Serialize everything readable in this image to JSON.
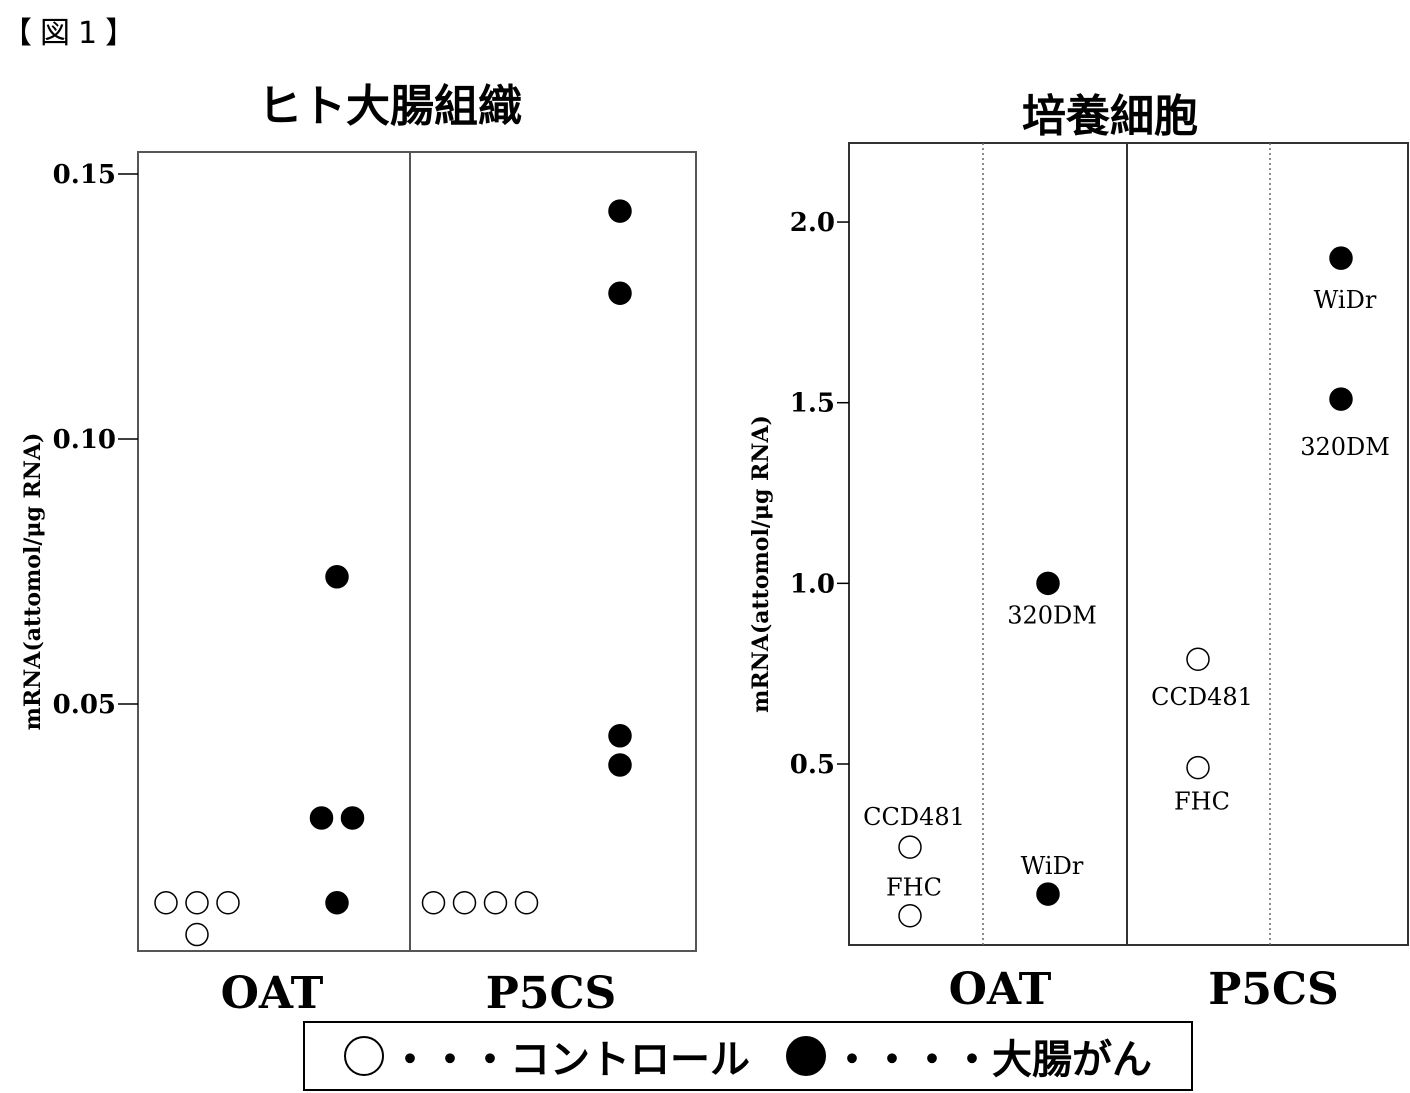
{
  "figure_label": "【図1】",
  "legend": {
    "control_label": "・・・コントロール",
    "cancer_label": "・・・・大腸がん"
  },
  "chart_data": [
    {
      "type": "scatter",
      "title": "ヒト大腸組織",
      "ylabel": "mRNA(attomol/μg RNA)",
      "ylim": [
        0,
        0.156
      ],
      "yticks": [
        "0.05",
        "0.10",
        "0.15"
      ],
      "categories": [
        "OAT",
        "P5CS"
      ],
      "series": [
        {
          "name": "コントロール",
          "marker": "open-circle",
          "points": [
            {
              "category": "OAT",
              "y": 0.0125
            },
            {
              "category": "OAT",
              "y": 0.0125
            },
            {
              "category": "OAT",
              "y": 0.0125
            },
            {
              "category": "OAT",
              "y": 0.0065
            },
            {
              "category": "P5CS",
              "y": 0.0125
            },
            {
              "category": "P5CS",
              "y": 0.0125
            },
            {
              "category": "P5CS",
              "y": 0.0125
            },
            {
              "category": "P5CS",
              "y": 0.0125
            }
          ]
        },
        {
          "name": "大腸がん",
          "marker": "filled-circle",
          "points": [
            {
              "category": "OAT",
              "y": 0.074
            },
            {
              "category": "OAT",
              "y": 0.0285
            },
            {
              "category": "OAT",
              "y": 0.0285
            },
            {
              "category": "OAT",
              "y": 0.0125
            },
            {
              "category": "P5CS",
              "y": 0.143
            },
            {
              "category": "P5CS",
              "y": 0.1275
            },
            {
              "category": "P5CS",
              "y": 0.044
            },
            {
              "category": "P5CS",
              "y": 0.0385
            }
          ]
        }
      ]
    },
    {
      "type": "scatter",
      "title": "培養細胞",
      "ylabel": "mRNA(attomol/μg RNA)",
      "ylim": [
        0,
        2.2
      ],
      "yticks": [
        "0.5",
        "1.0",
        "1.5",
        "2.0"
      ],
      "categories": [
        "OAT",
        "P5CS"
      ],
      "series": [
        {
          "name": "コントロール",
          "marker": "open-circle",
          "points": [
            {
              "category": "OAT",
              "group": "control",
              "label": "CCD481",
              "y": 0.27
            },
            {
              "category": "OAT",
              "group": "control",
              "label": "FHC",
              "y": 0.08
            },
            {
              "category": "P5CS",
              "group": "control",
              "label": "CCD481",
              "y": 0.79
            },
            {
              "category": "P5CS",
              "group": "control",
              "label": "FHC",
              "y": 0.49
            }
          ]
        },
        {
          "name": "大腸がん",
          "marker": "filled-circle",
          "points": [
            {
              "category": "OAT",
              "group": "cancer",
              "label": "320DM",
              "y": 1.0
            },
            {
              "category": "OAT",
              "group": "cancer",
              "label": "WiDr",
              "y": 0.14
            },
            {
              "category": "P5CS",
              "group": "cancer",
              "label": "WiDr",
              "y": 1.9
            },
            {
              "category": "P5CS",
              "group": "cancer",
              "label": "320DM",
              "y": 1.51
            }
          ]
        }
      ]
    }
  ]
}
